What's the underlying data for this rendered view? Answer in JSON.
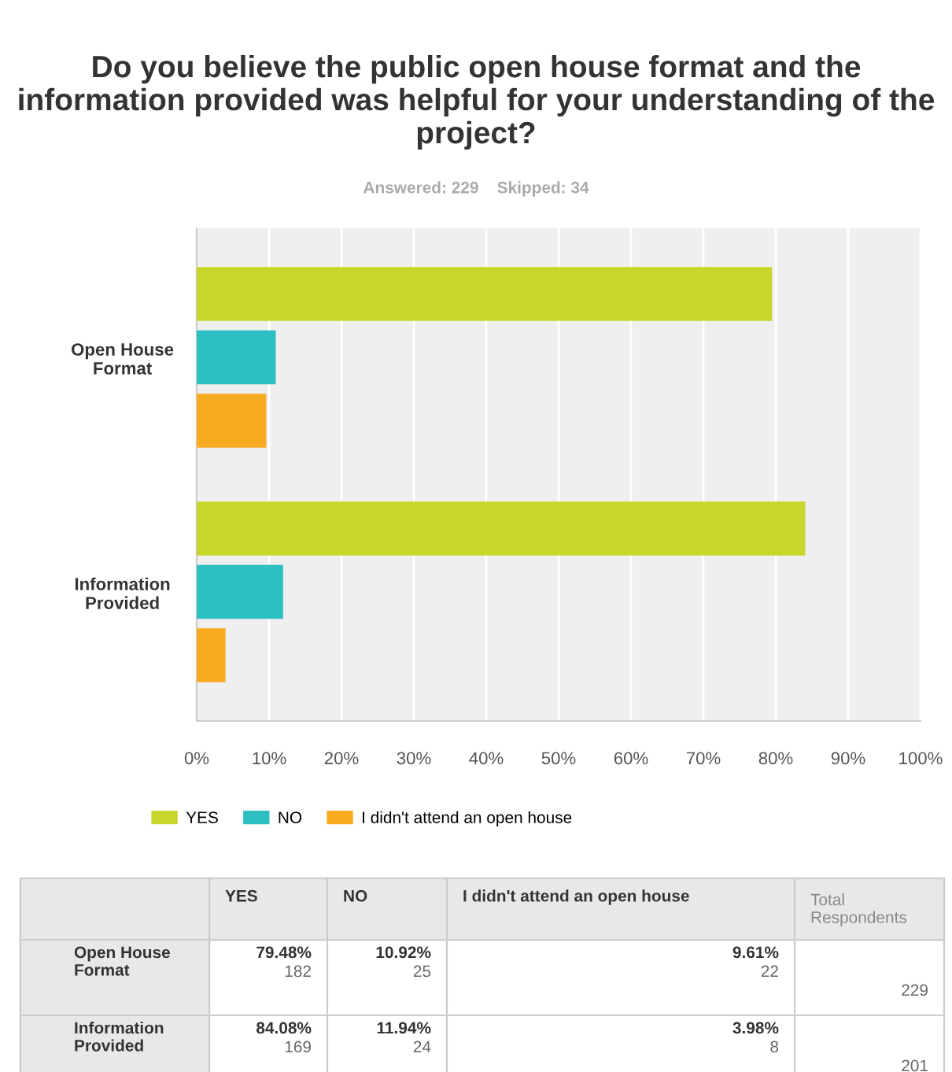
{
  "chart_data": {
    "type": "bar",
    "orientation": "horizontal",
    "title": "Do you believe the public open house format and the information provided was helpful for your understanding of the project?",
    "subtitle": "Answered: 229    Skipped: 34",
    "categories": [
      "Open House\nFormat",
      "Information\nProvided"
    ],
    "series": [
      {
        "name": "YES",
        "color": "#c9d52b",
        "values": [
          79.48,
          84.08
        ]
      },
      {
        "name": "NO",
        "color": "#2ebfc2",
        "values": [
          10.92,
          11.94
        ]
      },
      {
        "name": "I didn't attend an open house",
        "color": "#f7ab21",
        "values": [
          9.61,
          3.98
        ]
      }
    ],
    "annotations": [
      "Total Respondents",
      "79.48%",
      "182",
      "10.92%",
      "25",
      "9.61%",
      "22",
      "229",
      "84.08%",
      "169",
      "11.94%",
      "24",
      "3.98%",
      "8",
      "201"
    ],
    "xlim": [
      0,
      100
    ],
    "xticks": [
      {
        "value": 0,
        "label": "0%"
      },
      {
        "value": 10,
        "label": "10%"
      },
      {
        "value": 20,
        "label": "20%"
      },
      {
        "value": 30,
        "label": "30%"
      },
      {
        "value": 40,
        "label": "40%"
      },
      {
        "value": 50,
        "label": "50%"
      },
      {
        "value": 60,
        "label": "60%"
      },
      {
        "value": 70,
        "label": "70%"
      },
      {
        "value": 80,
        "label": "80%"
      },
      {
        "value": 90,
        "label": "90%"
      },
      {
        "value": 100,
        "label": "100%"
      }
    ],
    "grid": "x",
    "legend": "bottom"
  }
}
